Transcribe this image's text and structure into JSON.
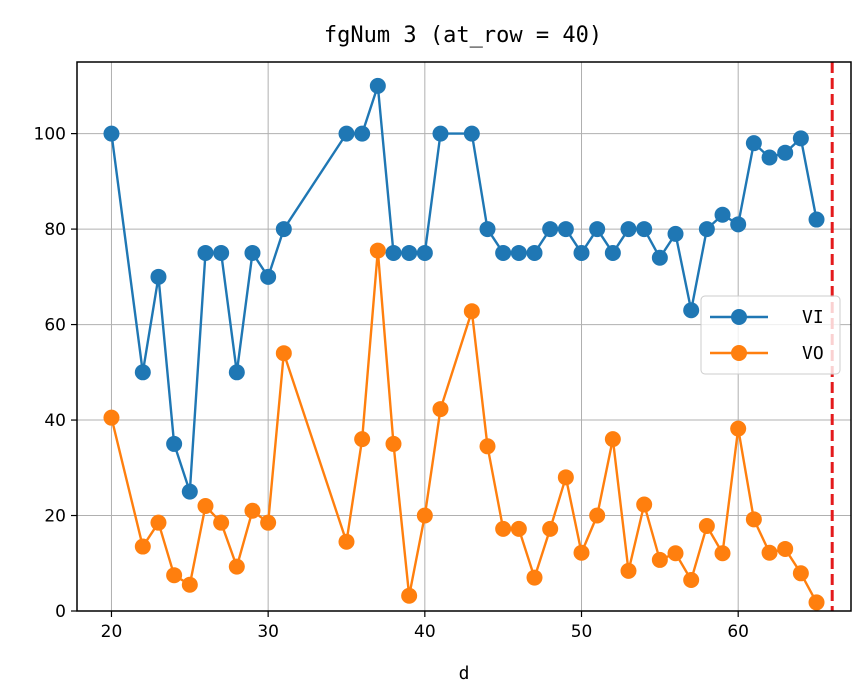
{
  "chart_data": {
    "type": "line",
    "title": "fgNum 3 (at_row = 40)",
    "xlabel": "d",
    "ylabel": "",
    "xlim": [
      17.8,
      67.2
    ],
    "ylim": [
      0,
      115
    ],
    "xticks": [
      20,
      30,
      40,
      50,
      60
    ],
    "yticks": [
      0,
      20,
      40,
      60,
      80,
      100
    ],
    "grid": true,
    "legend_position": "center-right",
    "vline": {
      "x": 66,
      "color": "#e41a1c",
      "style": "dashed"
    },
    "series": [
      {
        "name": "VI",
        "color": "#1f77b4",
        "x": [
          20,
          22,
          23,
          24,
          25,
          26,
          27,
          28,
          29,
          30,
          31,
          35,
          36,
          37,
          38,
          39,
          40,
          41,
          43,
          44,
          45,
          46,
          47,
          48,
          49,
          50,
          51,
          52,
          53,
          54,
          55,
          56,
          57,
          58,
          59,
          60,
          61,
          62,
          63,
          64,
          65
        ],
        "y": [
          100,
          50,
          70,
          35,
          25,
          75,
          75,
          50,
          75,
          70,
          80,
          100,
          100,
          110,
          75,
          75,
          75,
          100,
          100,
          80,
          75,
          75,
          75,
          80,
          80,
          75,
          80,
          75,
          80,
          80,
          74,
          79,
          63,
          80,
          83,
          81,
          98,
          95,
          96,
          99,
          82
        ]
      },
      {
        "name": "VO",
        "color": "#ff7f0e",
        "x": [
          20,
          22,
          23,
          24,
          25,
          26,
          27,
          28,
          29,
          30,
          31,
          35,
          36,
          37,
          38,
          39,
          40,
          41,
          43,
          44,
          45,
          46,
          47,
          48,
          49,
          50,
          51,
          52,
          53,
          54,
          55,
          56,
          57,
          58,
          59,
          60,
          61,
          62,
          63,
          64,
          65
        ],
        "y": [
          40.5,
          13.5,
          18.5,
          7.5,
          5.5,
          22,
          18.5,
          9.3,
          21,
          18.5,
          54,
          14.5,
          36,
          75.5,
          35,
          3.2,
          20,
          42.3,
          62.8,
          34.5,
          17.2,
          17.2,
          7,
          17.2,
          28,
          12.2,
          20,
          36,
          8.4,
          22.3,
          10.7,
          12.1,
          6.5,
          17.8,
          12.1,
          38.2,
          19.2,
          12.2,
          13,
          7.9,
          1.8
        ]
      }
    ]
  }
}
